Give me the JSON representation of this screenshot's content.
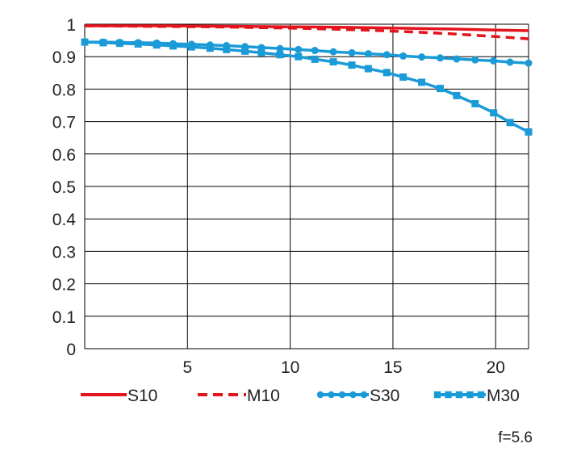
{
  "chart_data": {
    "type": "line",
    "title": "",
    "xlabel": "",
    "ylabel": "",
    "xlim": [
      0,
      21.6
    ],
    "ylim": [
      0,
      1
    ],
    "x_ticks": [
      5,
      10,
      15,
      20
    ],
    "y_ticks": [
      0,
      0.1,
      0.2,
      0.3,
      0.4,
      0.5,
      0.6,
      0.7,
      0.8,
      0.9,
      1
    ],
    "y_tick_labels": [
      "0",
      "0.1",
      "0.2",
      "0.3",
      "0.4",
      "0.5",
      "0.6",
      "0.7",
      "0.8",
      "0.9",
      "1"
    ],
    "grid": true,
    "legend_position": "bottom",
    "annotation": "f=5.6",
    "series": [
      {
        "name": "S10",
        "color": "#e3141c",
        "style": "solid",
        "marker": "none",
        "x": [
          0,
          2,
          4,
          6,
          8,
          10,
          12,
          14,
          16,
          18,
          20,
          21.6
        ],
        "y": [
          0.995,
          0.995,
          0.995,
          0.994,
          0.993,
          0.992,
          0.991,
          0.989,
          0.987,
          0.985,
          0.982,
          0.98
        ]
      },
      {
        "name": "M10",
        "color": "#e3141c",
        "style": "dashed",
        "marker": "none",
        "x": [
          0,
          2,
          4,
          6,
          8,
          10,
          12,
          14,
          16,
          18,
          20,
          21.6
        ],
        "y": [
          0.995,
          0.994,
          0.993,
          0.992,
          0.99,
          0.988,
          0.985,
          0.981,
          0.976,
          0.97,
          0.962,
          0.955
        ]
      },
      {
        "name": "S30",
        "color": "#1a9bd7",
        "style": "solid",
        "marker": "circle",
        "x": [
          0,
          0.9,
          1.7,
          2.6,
          3.5,
          4.3,
          5.2,
          6.1,
          6.9,
          7.8,
          8.6,
          9.5,
          10.4,
          11.2,
          12.1,
          13.0,
          13.8,
          14.7,
          15.5,
          16.4,
          17.3,
          18.1,
          19.0,
          19.9,
          20.7,
          21.6
        ],
        "y": [
          0.945,
          0.945,
          0.944,
          0.943,
          0.942,
          0.94,
          0.938,
          0.936,
          0.934,
          0.931,
          0.928,
          0.925,
          0.922,
          0.919,
          0.915,
          0.912,
          0.909,
          0.906,
          0.902,
          0.899,
          0.896,
          0.893,
          0.89,
          0.887,
          0.883,
          0.88
        ]
      },
      {
        "name": "M30",
        "color": "#1a9bd7",
        "style": "solid",
        "marker": "square",
        "x": [
          0,
          0.9,
          1.7,
          2.6,
          3.5,
          4.3,
          5.2,
          6.1,
          6.9,
          7.8,
          8.6,
          9.5,
          10.4,
          11.2,
          12.1,
          13.0,
          13.8,
          14.7,
          15.5,
          16.4,
          17.3,
          18.1,
          19.0,
          19.9,
          20.7,
          21.6
        ],
        "y": [
          0.945,
          0.943,
          0.941,
          0.939,
          0.936,
          0.933,
          0.93,
          0.926,
          0.922,
          0.917,
          0.912,
          0.906,
          0.9,
          0.892,
          0.884,
          0.874,
          0.863,
          0.851,
          0.837,
          0.821,
          0.802,
          0.78,
          0.755,
          0.727,
          0.697,
          0.668
        ]
      }
    ]
  }
}
